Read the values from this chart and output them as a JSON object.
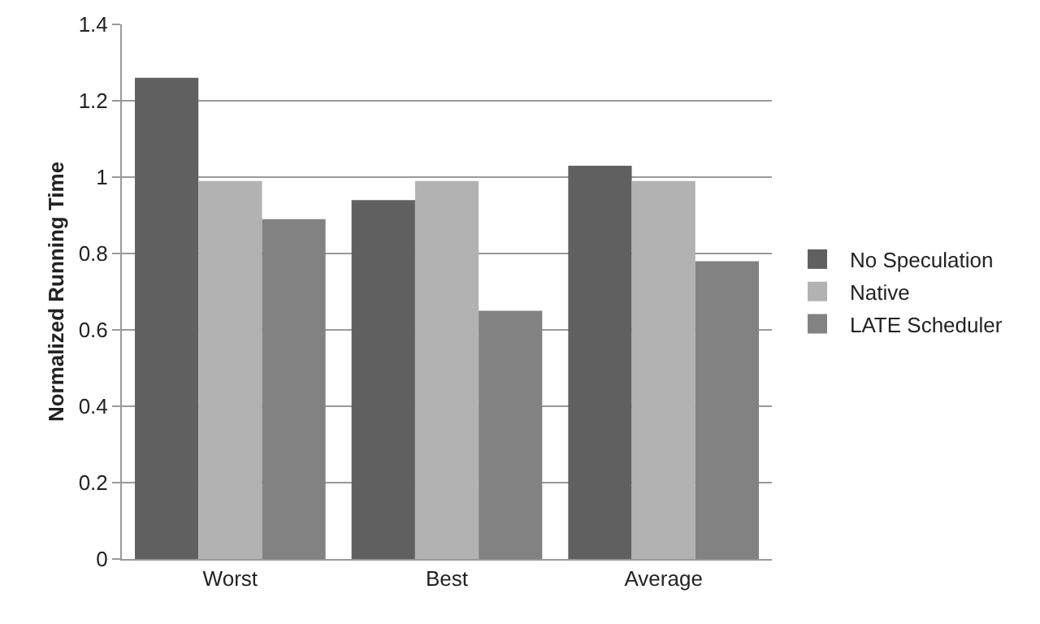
{
  "chart_data": {
    "type": "bar",
    "ylabel": "Normalized Running Time",
    "categories": [
      "Worst",
      "Best",
      "Average"
    ],
    "series": [
      {
        "name": "No Speculation",
        "color": "#606060",
        "values": [
          1.26,
          0.94,
          1.03
        ]
      },
      {
        "name": "Native",
        "color": "#b2b2b2",
        "values": [
          0.99,
          0.99,
          0.99
        ]
      },
      {
        "name": "LATE Scheduler",
        "color": "#828282",
        "values": [
          0.89,
          0.65,
          0.78
        ]
      }
    ],
    "ylim": [
      0,
      1.4
    ],
    "yticks": [
      0,
      0.2,
      0.4,
      0.6,
      0.8,
      1,
      1.2,
      1.4
    ],
    "grid": "y",
    "legend": "right"
  }
}
